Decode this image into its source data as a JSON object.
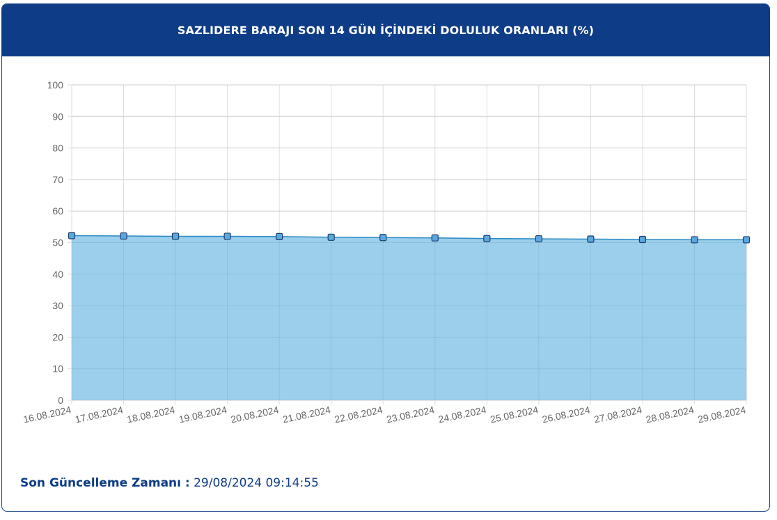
{
  "header": {
    "title": "SAZLIDERE BARAJI SON 14 GÜN İÇİNDEKİ DOLULUK ORANLARI (%)"
  },
  "footer": {
    "label": "Son Güncelleme Zamanı :",
    "value": "29/08/2024 09:14:55"
  },
  "colors": {
    "header_bg": "#0e3c87",
    "area_fill": "#9bcfec",
    "line": "#2a8ac4",
    "grid": "#dddddd",
    "footer_text": "#0e3c87"
  },
  "chart_data": {
    "type": "area",
    "title": "",
    "xlabel": "",
    "ylabel": "",
    "ylim": [
      0,
      100
    ],
    "yticks": [
      0,
      10,
      20,
      30,
      40,
      50,
      60,
      70,
      80,
      90,
      100
    ],
    "grid": true,
    "categories": [
      "16.08.2024",
      "17.08.2024",
      "18.08.2024",
      "19.08.2024",
      "20.08.2024",
      "21.08.2024",
      "22.08.2024",
      "23.08.2024",
      "24.08.2024",
      "25.08.2024",
      "26.08.2024",
      "27.08.2024",
      "28.08.2024",
      "29.08.2024"
    ],
    "values": [
      52.2,
      52.1,
      52.0,
      52.0,
      51.9,
      51.7,
      51.6,
      51.5,
      51.3,
      51.2,
      51.1,
      51.0,
      50.9,
      50.9
    ]
  }
}
